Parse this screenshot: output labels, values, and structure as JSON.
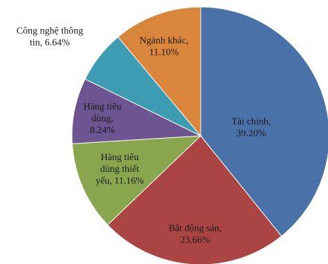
{
  "chart_data": {
    "type": "pie",
    "title": "",
    "legend": "none",
    "slices": [
      {
        "label_lines": [
          "Tài chính,",
          "39.20%"
        ],
        "name": "Tài chính",
        "value": 39.2,
        "color": "#4a72a8"
      },
      {
        "label_lines": [
          "Bất động sản,",
          "23.66%"
        ],
        "name": "Bất động sản",
        "value": 23.66,
        "color": "#ab4543"
      },
      {
        "label_lines": [
          "Hàng tiêu",
          "dùng thiết",
          "yếu, 11.16%"
        ],
        "name": "Hàng tiêu dùng thiết yếu",
        "value": 11.16,
        "color": "#89a64e"
      },
      {
        "label_lines": [
          "Hàng tiêu",
          "dùng,",
          "8.24%"
        ],
        "name": "Hàng tiêu dùng",
        "value": 8.24,
        "color": "#6c5591"
      },
      {
        "label_lines": [
          "Công nghệ thông",
          "tin, 6.64%"
        ],
        "name": "Công nghệ thông tin",
        "value": 6.64,
        "color": "#3d9bb2"
      },
      {
        "label_lines": [
          "Ngành khác,",
          "11.10%"
        ],
        "name": "Ngành khác",
        "value": 11.1,
        "color": "#d9853b"
      }
    ]
  }
}
